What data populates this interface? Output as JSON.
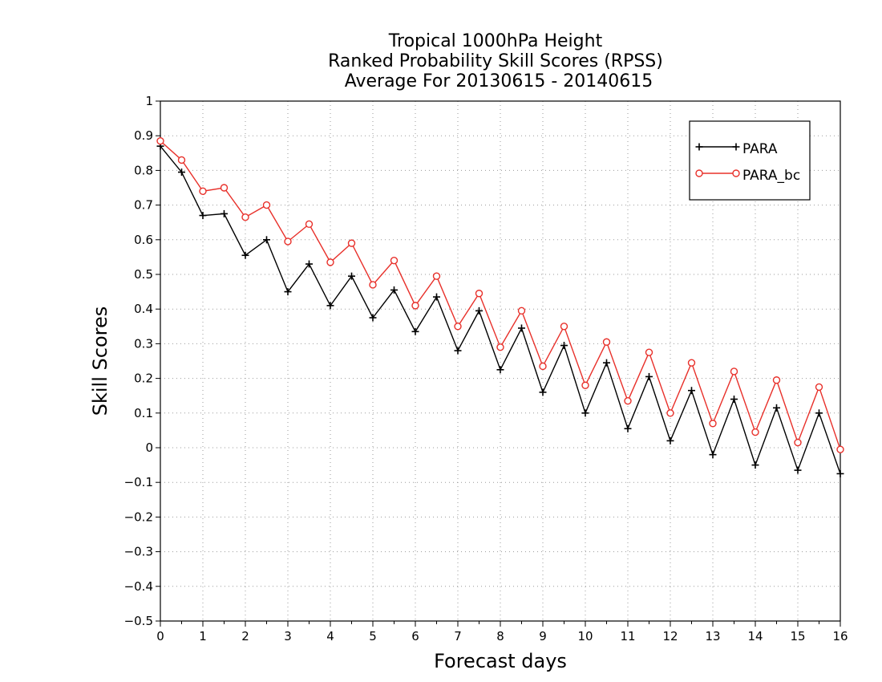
{
  "chart_data": {
    "type": "line",
    "title": [
      "Tropical 1000hPa Height",
      "Ranked Probability Skill Scores (RPSS)",
      "Average For 20130615 - 20140615"
    ],
    "xlabel": "Forecast days",
    "ylabel": "Skill Scores",
    "xlim": [
      0,
      16
    ],
    "ylim": [
      -0.5,
      1
    ],
    "xticks": [
      "0",
      "1",
      "2",
      "3",
      "4",
      "5",
      "6",
      "7",
      "8",
      "9",
      "10",
      "11",
      "12",
      "13",
      "14",
      "15",
      "16"
    ],
    "yticks": [
      "−0.5",
      "−0.4",
      "−0.3",
      "−0.2",
      "−0.1",
      "0",
      "0.1",
      "0.2",
      "0.3",
      "0.4",
      "0.5",
      "0.6",
      "0.7",
      "0.8",
      "0.9",
      "1"
    ],
    "grid": true,
    "legend_position": "top-right",
    "x": [
      0,
      0.5,
      1,
      1.5,
      2,
      2.5,
      3,
      3.5,
      4,
      4.5,
      5,
      5.5,
      6,
      6.5,
      7,
      7.5,
      8,
      8.5,
      9,
      9.5,
      10,
      10.5,
      11,
      11.5,
      12,
      12.5,
      13,
      13.5,
      14,
      14.5,
      15,
      15.5,
      16
    ],
    "series": [
      {
        "name": "PARA",
        "color": "#000000",
        "marker": "plus",
        "values": [
          0.87,
          0.795,
          0.67,
          0.675,
          0.555,
          0.6,
          0.45,
          0.53,
          0.41,
          0.495,
          0.375,
          0.455,
          0.335,
          0.435,
          0.28,
          0.395,
          0.225,
          0.345,
          0.16,
          0.295,
          0.1,
          0.245,
          0.055,
          0.205,
          0.02,
          0.165,
          -0.02,
          0.14,
          -0.05,
          0.115,
          -0.065,
          0.1,
          -0.075
        ]
      },
      {
        "name": "PARA_bc",
        "color": "#e8302a",
        "marker": "circle",
        "values": [
          0.885,
          0.83,
          0.74,
          0.75,
          0.665,
          0.7,
          0.595,
          0.645,
          0.535,
          0.59,
          0.47,
          0.54,
          0.41,
          0.495,
          0.35,
          0.445,
          0.29,
          0.395,
          0.235,
          0.35,
          0.18,
          0.305,
          0.135,
          0.275,
          0.1,
          0.245,
          0.07,
          0.22,
          0.045,
          0.195,
          0.015,
          0.175,
          -0.005
        ]
      }
    ]
  }
}
